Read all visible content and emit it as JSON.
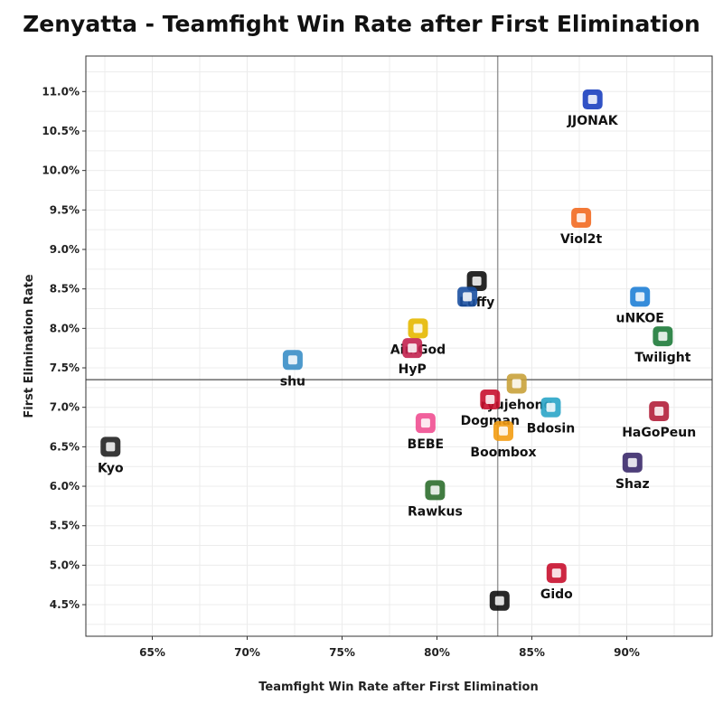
{
  "chart_data": {
    "type": "scatter",
    "title": "Zenyatta - Teamfight Win Rate after First Elimination",
    "xlabel": "Teamfight Win Rate after First Elimination",
    "ylabel": "First Elimination Rate",
    "xlim": [
      61.5,
      94.5
    ],
    "ylim": [
      4.1,
      11.45
    ],
    "x_ticks": [
      65,
      70,
      75,
      80,
      85,
      90
    ],
    "x_tick_labels": [
      "65%",
      "70%",
      "75%",
      "80%",
      "85%",
      "90%"
    ],
    "y_ticks": [
      4.5,
      5.0,
      5.5,
      6.0,
      6.5,
      7.0,
      7.5,
      8.0,
      8.5,
      9.0,
      9.5,
      10.0,
      10.5,
      11.0
    ],
    "y_tick_labels": [
      "4.5%",
      "5.0%",
      "5.5%",
      "6.0%",
      "6.5%",
      "7.0%",
      "7.5%",
      "8.0%",
      "8.5%",
      "9.0%",
      "9.5%",
      "10.0%",
      "10.5%",
      "11.0%"
    ],
    "reference_lines": {
      "x": 83.2,
      "y": 7.35
    },
    "grid": true,
    "points": [
      {
        "label": "JJONAK",
        "x": 88.2,
        "y": 10.9,
        "team_color": "#1b3fbf"
      },
      {
        "label": "Viol2t",
        "x": 87.6,
        "y": 9.4,
        "team_color": "#f26a21"
      },
      {
        "label": "Luffy",
        "x": 82.1,
        "y": 8.6,
        "team_color": "#111111"
      },
      {
        "label": "",
        "x": 81.6,
        "y": 8.4,
        "team_color": "#1a4fa0"
      },
      {
        "label": "uNKOE",
        "x": 90.7,
        "y": 8.4,
        "team_color": "#1f7fd6"
      },
      {
        "label": "AimGod",
        "x": 79.0,
        "y": 8.0,
        "team_color": "#e6b800"
      },
      {
        "label": "Twilight",
        "x": 91.9,
        "y": 7.9,
        "team_color": "#1e7b3a"
      },
      {
        "label": "HyP",
        "x": 78.7,
        "y": 7.75,
        "team_color": "#c3224f"
      },
      {
        "label": "shu",
        "x": 72.4,
        "y": 7.6,
        "team_color": "#3a8ec7"
      },
      {
        "label": "ryujehong",
        "x": 84.2,
        "y": 7.3,
        "team_color": "#c9a23b"
      },
      {
        "label": "Dogman",
        "x": 82.8,
        "y": 7.1,
        "team_color": "#c8102e"
      },
      {
        "label": "Bdosin",
        "x": 86.0,
        "y": 7.0,
        "team_color": "#2aa5c8"
      },
      {
        "label": "HaGoPeun",
        "x": 91.7,
        "y": 6.95,
        "team_color": "#b31f3a"
      },
      {
        "label": "BEBE",
        "x": 79.4,
        "y": 6.8,
        "team_color": "#ef4f91"
      },
      {
        "label": "Boombox",
        "x": 83.5,
        "y": 6.7,
        "team_color": "#f39c12"
      },
      {
        "label": "Kyo",
        "x": 62.8,
        "y": 6.5,
        "team_color": "#222222"
      },
      {
        "label": "Shaz",
        "x": 90.3,
        "y": 6.3,
        "team_color": "#3b2a6b"
      },
      {
        "label": "Rawkus",
        "x": 79.9,
        "y": 5.95,
        "team_color": "#2d6e2d"
      },
      {
        "label": "Gido",
        "x": 86.3,
        "y": 4.9,
        "team_color": "#c8102e"
      },
      {
        "label": "",
        "x": 83.3,
        "y": 4.55,
        "team_color": "#111111"
      }
    ]
  }
}
